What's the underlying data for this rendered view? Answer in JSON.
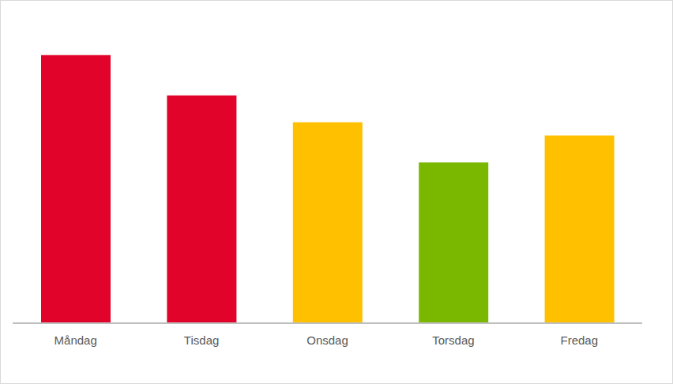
{
  "chart_data": {
    "type": "bar",
    "categories": [
      "Måndag",
      "Tisdag",
      "Onsdag",
      "Torsdag",
      "Fredag"
    ],
    "values": [
      34.0,
      28.9,
      25.5,
      20.4,
      23.8
    ],
    "colors": [
      "#e2032a",
      "#e2032a",
      "#ffc000",
      "#7ab800",
      "#ffc000"
    ],
    "ylim": [
      0,
      40
    ],
    "grid": false,
    "tick_labels": "x"
  }
}
